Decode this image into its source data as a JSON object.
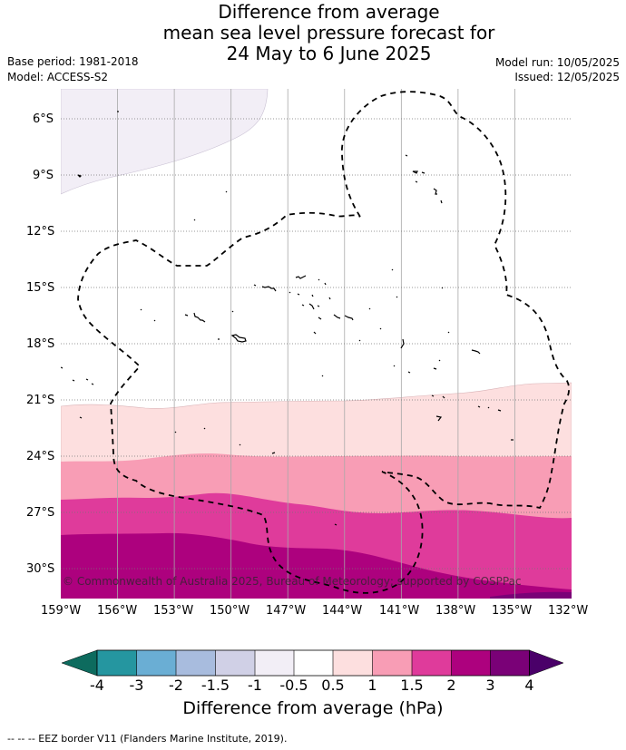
{
  "title": {
    "line1": "Difference from average",
    "line2": "mean sea level pressure forecast for",
    "line3": "24 May to 6 June 2025"
  },
  "meta": {
    "base_period": "Base period: 1981-2018",
    "model": "Model: ACCESS-S2",
    "model_run": "Model run: 10/05/2025",
    "issued": "Issued: 12/05/2025"
  },
  "axes": {
    "lat_labels": [
      "6°S",
      "9°S",
      "12°S",
      "15°S",
      "18°S",
      "21°S",
      "24°S",
      "27°S",
      "30°S"
    ],
    "lon_labels": [
      "159°W",
      "156°W",
      "153°W",
      "150°W",
      "147°W",
      "144°W",
      "141°W",
      "138°W",
      "135°W",
      "132°W"
    ]
  },
  "colorbar": {
    "ticks": [
      "-4",
      "-3",
      "-2",
      "-1.5",
      "-1",
      "-0.5",
      "0.5",
      "1",
      "1.5",
      "2",
      "3",
      "4"
    ],
    "label": "Difference from average (hPa)",
    "colors": {
      "under": "#0d6b5e",
      "-4_-3": "#2596a0",
      "-3_-2": "#6aaed4",
      "-2_-1.5": "#a8bcde",
      "-1.5_-1": "#d0d0e6",
      "-1_-0.5": "#f2eef6",
      "-0.5_0.5": "#ffffff",
      "0.5_1": "#fddfdf",
      "1_1.5": "#f89db5",
      "1.5_2": "#df3b9b",
      "2_3": "#ad017e",
      "3_4": "#7a0177",
      "over": "#4a0069"
    }
  },
  "copyright": "© Commonwealth of Australia 2025, Bureau of Meteorology; supported by COSPPac",
  "footer": "-- -- -- EEZ border V11 (Flanders Marine Institute, 2019)."
}
